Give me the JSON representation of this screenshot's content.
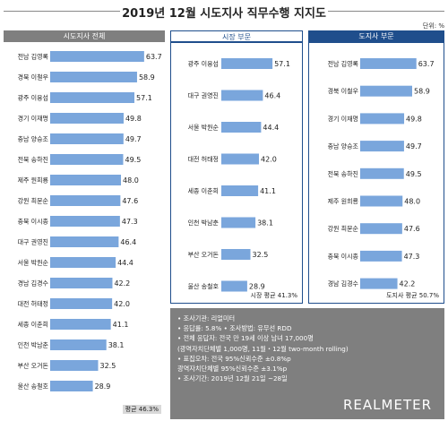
{
  "title": "2019년 12월 시도지사 직무수행 지지도",
  "unit": "단위: %",
  "colors": {
    "bar": "#7aa6dc",
    "accent": "#1f4e8c",
    "gray_head": "#7f7f7f"
  },
  "chart_data": [
    {
      "type": "bar",
      "title": "시도지사 전체",
      "categories": [
        "전남 김영록",
        "경북 이철우",
        "광주 이용섭",
        "경기 이재명",
        "충남 양승조",
        "전북 송하진",
        "제주 원희룡",
        "강원 최문순",
        "충북 이시종",
        "대구 권영진",
        "서울 박원순",
        "경남 김경수",
        "대전 허태정",
        "세종 이춘희",
        "인천 박남춘",
        "부산 오거돈",
        "울산 송철호"
      ],
      "values": [
        63.7,
        58.9,
        57.1,
        49.8,
        49.7,
        49.5,
        48.0,
        47.6,
        47.3,
        46.4,
        44.4,
        42.2,
        42.0,
        41.1,
        38.1,
        32.5,
        28.9
      ],
      "value_labels": [
        "63.7",
        "58.9",
        "57.1",
        "49.8",
        "49.7",
        "49.5",
        "48.0",
        "47.6",
        "47.3",
        "46.4",
        "44.4",
        "42.2",
        "42.0",
        "41.1",
        "38.1",
        "32.5",
        "28.9"
      ],
      "average_label": "평균 46.3%"
    },
    {
      "type": "bar",
      "title": "시장 부문",
      "categories": [
        "광주 이용섭",
        "대구 권영진",
        "서울 박원순",
        "대전 허태정",
        "세종 이춘희",
        "인천 박남춘",
        "부산 오거돈",
        "울산 송철호"
      ],
      "values": [
        57.1,
        46.4,
        44.4,
        42.0,
        41.1,
        38.1,
        32.5,
        28.9
      ],
      "value_labels": [
        "57.1",
        "46.4",
        "44.4",
        "42.0",
        "41.1",
        "38.1",
        "32.5",
        "28.9"
      ],
      "average_label": "시장 평균 41.3%"
    },
    {
      "type": "bar",
      "title": "도지사 부문",
      "categories": [
        "전남 김영록",
        "경북 이철우",
        "경기 이재명",
        "충남 양승조",
        "전북 송하진",
        "제주 원희룡",
        "강원 최문순",
        "충북 이시종",
        "경남 김경수"
      ],
      "values": [
        63.7,
        58.9,
        49.8,
        49.7,
        49.5,
        48.0,
        47.6,
        47.3,
        42.2
      ],
      "value_labels": [
        "63.7",
        "58.9",
        "49.8",
        "49.7",
        "49.5",
        "48.0",
        "47.6",
        "47.3",
        "42.2"
      ],
      "average_label": "도지사 평균 50.7%"
    }
  ],
  "info": {
    "lines": [
      "• 조사기관: 리얼미터",
      "• 응답률: 5.8%  • 조사방법: 유무선 RDD",
      "• 전체 응답자: 전국 만 19세 이상 남녀 17,000명",
      "   (광역자치단체별 1,000명, 11월・12월 two-month rolling)",
      "• 표집오차: 전국 95%신뢰수준 ±0.8%p",
      "   광역자치단체별 95%신뢰수준 ±3.1%p",
      "• 조사기간: 2019년 12월 21일 ~28일"
    ],
    "logo": "REALMETER"
  }
}
